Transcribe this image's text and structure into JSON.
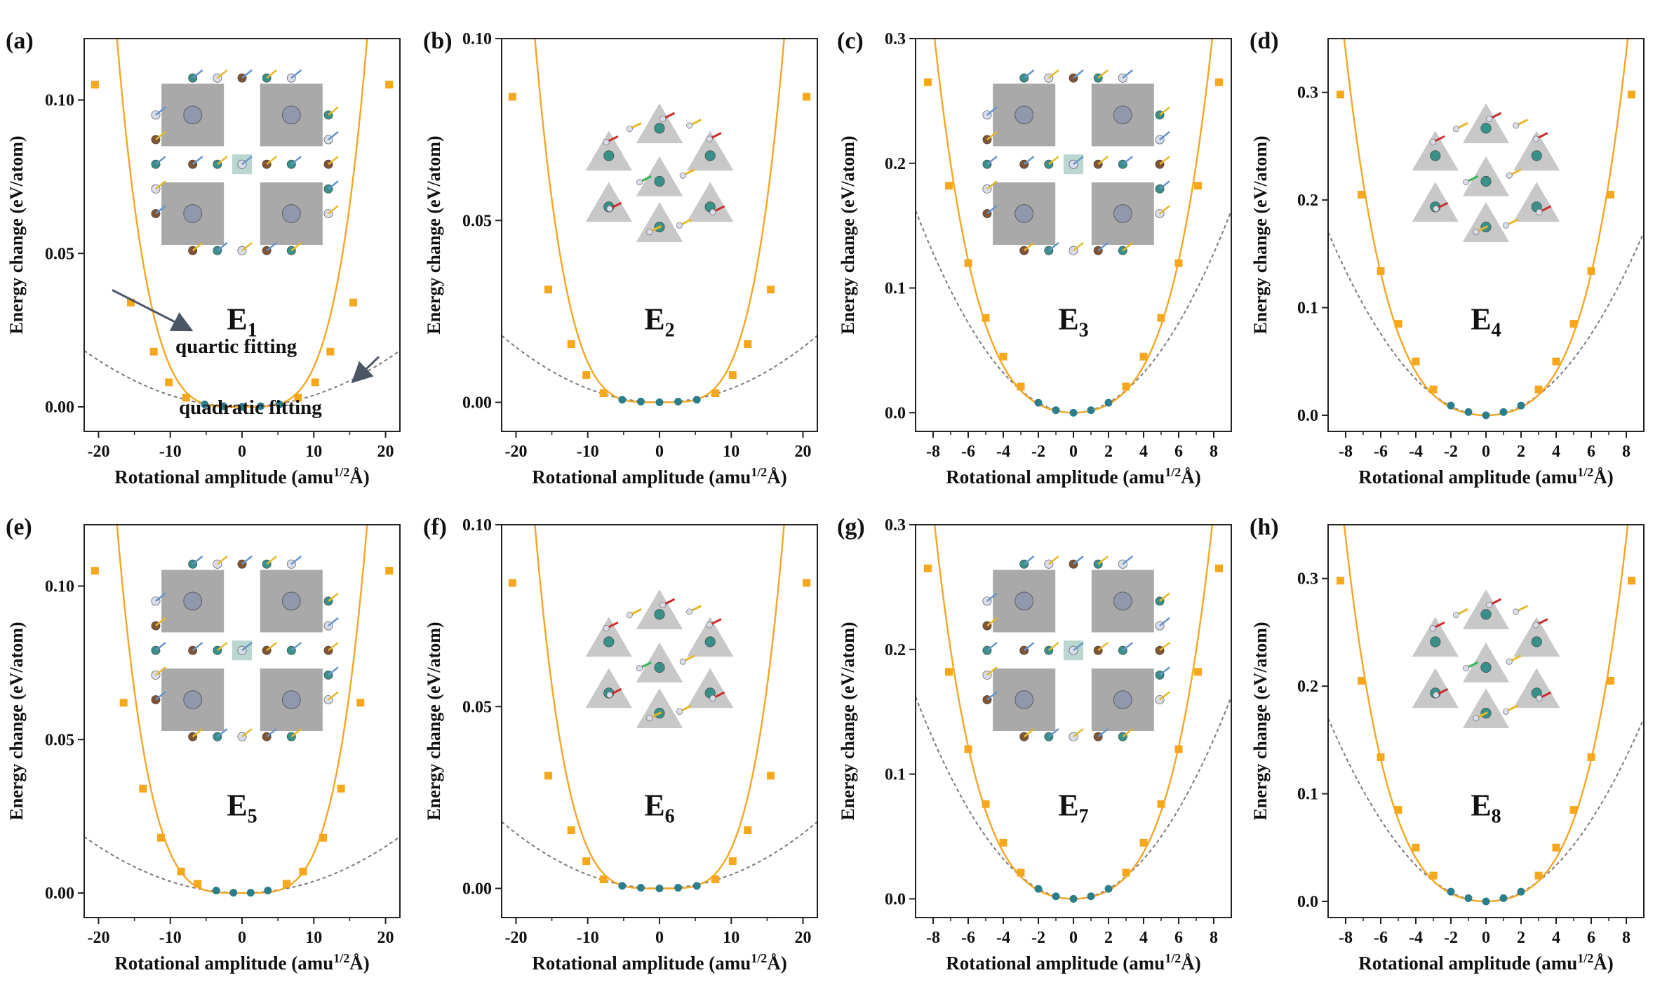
{
  "figure": {
    "x_axis_title_prefix": "Rotational amplitude (amu",
    "x_axis_title_sup": "1/2",
    "x_axis_title_suffix": "Å)",
    "y_axis_title": "Energy change (eV/atom)",
    "annotations": {
      "quartic": "quartic fitting",
      "quadratic": "quadratic fitting"
    },
    "colors": {
      "quartic": "#f5a623",
      "quartic_marker": "#f7a71c",
      "quadratic": "#7a7a7a",
      "center_marker": "#2b7f8c",
      "axis": "#222222",
      "structure_fill": "#5a5a5a",
      "atom_green": "#2e8b82",
      "atom_brown": "#7a4a2a",
      "atom_white": "#d8dbe8",
      "arrow_red": "#cc1f1f",
      "arrow_yellow": "#e6b61c",
      "arrow_blue": "#5b8fc9",
      "arrow_green": "#27b34a"
    },
    "inset_icons": [
      "octahedral-network-icon",
      "tetrahedral-network-icon"
    ]
  },
  "chart_data": [
    {
      "type": "scatter",
      "panel": "(a)",
      "mode": "E",
      "mode_sub": "1",
      "xlim": [
        -22,
        22
      ],
      "ylim": [
        -0.008,
        0.12
      ],
      "xticks": [
        -20,
        -10,
        0,
        10,
        20
      ],
      "xtick_labels": [
        "-20",
        "-10",
        "0",
        "10",
        "20"
      ],
      "yticks": [
        0.0,
        0.05,
        0.1
      ],
      "ytick_labels": [
        "0.00",
        "0.05",
        "0.10"
      ],
      "quartic_coef": [
        0.0,
        1.3e-06
      ],
      "quadratic_coef": 3.79e-05,
      "x": [
        -20.5,
        -15.5,
        -12.3,
        -10.2,
        -7.8,
        -5.2,
        -2.6,
        0,
        2.6,
        5.2,
        7.8,
        10.2,
        12.3,
        15.5,
        20.5
      ],
      "y": [
        0.105,
        0.034,
        0.018,
        0.008,
        0.003,
        0.0008,
        0.0002,
        0.0,
        0.0002,
        0.0008,
        0.003,
        0.008,
        0.018,
        0.034,
        0.105
      ],
      "structure": "octahedral",
      "show_annotations": true
    },
    {
      "type": "scatter",
      "panel": "(b)",
      "mode": "E",
      "mode_sub": "2",
      "xlim": [
        -22,
        22
      ],
      "ylim": [
        -0.008,
        0.1
      ],
      "xticks": [
        -20,
        -10,
        0,
        10,
        20
      ],
      "xtick_labels": [
        "-20",
        "-10",
        "0",
        "10",
        "20"
      ],
      "yticks": [
        0.0,
        0.05,
        0.1
      ],
      "ytick_labels": [
        "0.00",
        "0.05",
        "0.10"
      ],
      "quartic_coef": [
        0.0,
        1.1e-06
      ],
      "quadratic_coef": 3.79e-05,
      "x": [
        -20.5,
        -15.5,
        -12.3,
        -10.2,
        -7.8,
        -5.2,
        -2.6,
        0,
        2.6,
        5.2,
        7.8,
        10.2,
        12.3,
        15.5,
        20.5
      ],
      "y": [
        0.084,
        0.031,
        0.016,
        0.0075,
        0.0025,
        0.0007,
        0.0002,
        0.0,
        0.0002,
        0.0007,
        0.0025,
        0.0075,
        0.016,
        0.031,
        0.084
      ],
      "structure": "tetrahedral",
      "show_annotations": false
    },
    {
      "type": "scatter",
      "panel": "(c)",
      "mode": "E",
      "mode_sub": "3",
      "xlim": [
        -9,
        9
      ],
      "ylim": [
        -0.015,
        0.3
      ],
      "xticks": [
        -8,
        -6,
        -4,
        -2,
        0,
        2,
        4,
        6,
        8
      ],
      "xtick_labels": [
        "-8",
        "-6",
        "-4",
        "-2",
        "0",
        "2",
        "4",
        "6",
        "8"
      ],
      "yticks": [
        0.0,
        0.1,
        0.2,
        0.3
      ],
      "ytick_labels": [
        "0.0",
        "0.1",
        "0.2",
        "0.3"
      ],
      "quartic_coef": [
        0.0015,
        5.25e-05
      ],
      "quadratic_coef": 0.002,
      "x": [
        -8.3,
        -7.1,
        -6.0,
        -5.0,
        -4.0,
        -3.0,
        -2.0,
        -1.0,
        0,
        1.0,
        2.0,
        3.0,
        4.0,
        5.0,
        6.0,
        7.1,
        8.3
      ],
      "y": [
        0.265,
        0.182,
        0.12,
        0.076,
        0.045,
        0.021,
        0.008,
        0.002,
        0.0,
        0.002,
        0.008,
        0.021,
        0.045,
        0.076,
        0.12,
        0.182,
        0.265
      ],
      "structure": "octahedral",
      "show_annotations": false
    },
    {
      "type": "scatter",
      "panel": "(d)",
      "mode": "E",
      "mode_sub": "4",
      "xlim": [
        -9,
        9
      ],
      "ylim": [
        -0.015,
        0.35
      ],
      "xticks": [
        -8,
        -6,
        -4,
        -2,
        0,
        2,
        4,
        6,
        8
      ],
      "xtick_labels": [
        "-8",
        "-6",
        "-4",
        "-2",
        "0",
        "2",
        "4",
        "6",
        "8"
      ],
      "yticks": [
        0.0,
        0.1,
        0.2,
        0.3
      ],
      "ytick_labels": [
        "0.0",
        "0.1",
        "0.2",
        "0.3"
      ],
      "quartic_coef": [
        0.0016,
        5.75e-05
      ],
      "quadratic_coef": 0.0021,
      "x": [
        -8.3,
        -7.1,
        -6.0,
        -5.0,
        -4.0,
        -3.0,
        -2.0,
        -1.0,
        0,
        1.0,
        2.0,
        3.0,
        4.0,
        5.0,
        6.0,
        7.1,
        8.3
      ],
      "y": [
        0.298,
        0.205,
        0.134,
        0.085,
        0.05,
        0.024,
        0.009,
        0.003,
        0.0,
        0.003,
        0.009,
        0.024,
        0.05,
        0.085,
        0.134,
        0.205,
        0.298
      ],
      "structure": "tetrahedral",
      "show_annotations": false
    },
    {
      "type": "scatter",
      "panel": "(e)",
      "mode": "E",
      "mode_sub": "5",
      "xlim": [
        -22,
        22
      ],
      "ylim": [
        -0.008,
        0.12
      ],
      "xticks": [
        -20,
        -10,
        0,
        10,
        20
      ],
      "xtick_labels": [
        "-20",
        "-10",
        "0",
        "10",
        "20"
      ],
      "yticks": [
        0.0,
        0.05,
        0.1
      ],
      "ytick_labels": [
        "0.00",
        "0.05",
        "0.10"
      ],
      "quartic_coef": [
        0.0,
        1.3e-06
      ],
      "quadratic_coef": 3.79e-05,
      "x": [
        -20.5,
        -16.5,
        -13.8,
        -11.3,
        -8.5,
        -6.2,
        -3.6,
        -1.2,
        1.2,
        3.6,
        6.2,
        8.5,
        11.3,
        13.8,
        16.5,
        20.5
      ],
      "y": [
        0.105,
        0.062,
        0.034,
        0.018,
        0.007,
        0.003,
        0.0008,
        0.0001,
        0.0001,
        0.0008,
        0.003,
        0.007,
        0.018,
        0.034,
        0.062,
        0.105
      ],
      "structure": "octahedral",
      "show_annotations": false
    },
    {
      "type": "scatter",
      "panel": "(f)",
      "mode": "E",
      "mode_sub": "6",
      "xlim": [
        -22,
        22
      ],
      "ylim": [
        -0.008,
        0.1
      ],
      "xticks": [
        -20,
        -10,
        0,
        10,
        20
      ],
      "xtick_labels": [
        "-20",
        "-10",
        "0",
        "10",
        "20"
      ],
      "yticks": [
        0.0,
        0.05,
        0.1
      ],
      "ytick_labels": [
        "0.00",
        "0.05",
        "0.10"
      ],
      "quartic_coef": [
        0.0,
        1.1e-06
      ],
      "quadratic_coef": 3.79e-05,
      "x": [
        -20.5,
        -15.5,
        -12.3,
        -10.2,
        -7.8,
        -5.2,
        -2.6,
        0,
        2.6,
        5.2,
        7.8,
        10.2,
        12.3,
        15.5,
        20.5
      ],
      "y": [
        0.084,
        0.031,
        0.016,
        0.0075,
        0.0025,
        0.0007,
        0.0002,
        0.0,
        0.0002,
        0.0007,
        0.0025,
        0.0075,
        0.016,
        0.031,
        0.084
      ],
      "structure": "tetrahedral",
      "show_annotations": false
    },
    {
      "type": "scatter",
      "panel": "(g)",
      "mode": "E",
      "mode_sub": "7",
      "xlim": [
        -9,
        9
      ],
      "ylim": [
        -0.015,
        0.3
      ],
      "xticks": [
        -8,
        -6,
        -4,
        -2,
        0,
        2,
        4,
        6,
        8
      ],
      "xtick_labels": [
        "-8",
        "-6",
        "-4",
        "-2",
        "0",
        "2",
        "4",
        "6",
        "8"
      ],
      "yticks": [
        0.0,
        0.1,
        0.2,
        0.3
      ],
      "ytick_labels": [
        "0.0",
        "0.1",
        "0.2",
        "0.3"
      ],
      "quartic_coef": [
        0.0015,
        5.25e-05
      ],
      "quadratic_coef": 0.002,
      "x": [
        -8.3,
        -7.1,
        -6.0,
        -5.0,
        -4.0,
        -3.0,
        -2.0,
        -1.0,
        0,
        1.0,
        2.0,
        3.0,
        4.0,
        5.0,
        6.0,
        7.1,
        8.3
      ],
      "y": [
        0.265,
        0.182,
        0.12,
        0.076,
        0.045,
        0.021,
        0.008,
        0.002,
        0.0,
        0.002,
        0.008,
        0.021,
        0.045,
        0.076,
        0.12,
        0.182,
        0.265
      ],
      "structure": "octahedral",
      "show_annotations": false
    },
    {
      "type": "scatter",
      "panel": "(h)",
      "mode": "E",
      "mode_sub": "8",
      "xlim": [
        -9,
        9
      ],
      "ylim": [
        -0.015,
        0.35
      ],
      "xticks": [
        -8,
        -6,
        -4,
        -2,
        0,
        2,
        4,
        6,
        8
      ],
      "xtick_labels": [
        "-8",
        "-6",
        "-4",
        "-2",
        "0",
        "2",
        "4",
        "6",
        "8"
      ],
      "yticks": [
        0.0,
        0.1,
        0.2,
        0.3
      ],
      "ytick_labels": [
        "0.0",
        "0.1",
        "0.2",
        "0.3"
      ],
      "quartic_coef": [
        0.0016,
        5.75e-05
      ],
      "quadratic_coef": 0.0021,
      "x": [
        -8.3,
        -7.1,
        -6.0,
        -5.0,
        -4.0,
        -3.0,
        -2.0,
        -1.0,
        0,
        1.0,
        2.0,
        3.0,
        4.0,
        5.0,
        6.0,
        7.1,
        8.3
      ],
      "y": [
        0.298,
        0.205,
        0.134,
        0.085,
        0.05,
        0.024,
        0.009,
        0.003,
        0.0,
        0.003,
        0.009,
        0.024,
        0.05,
        0.085,
        0.134,
        0.205,
        0.298
      ],
      "structure": "tetrahedral",
      "show_annotations": false
    }
  ]
}
